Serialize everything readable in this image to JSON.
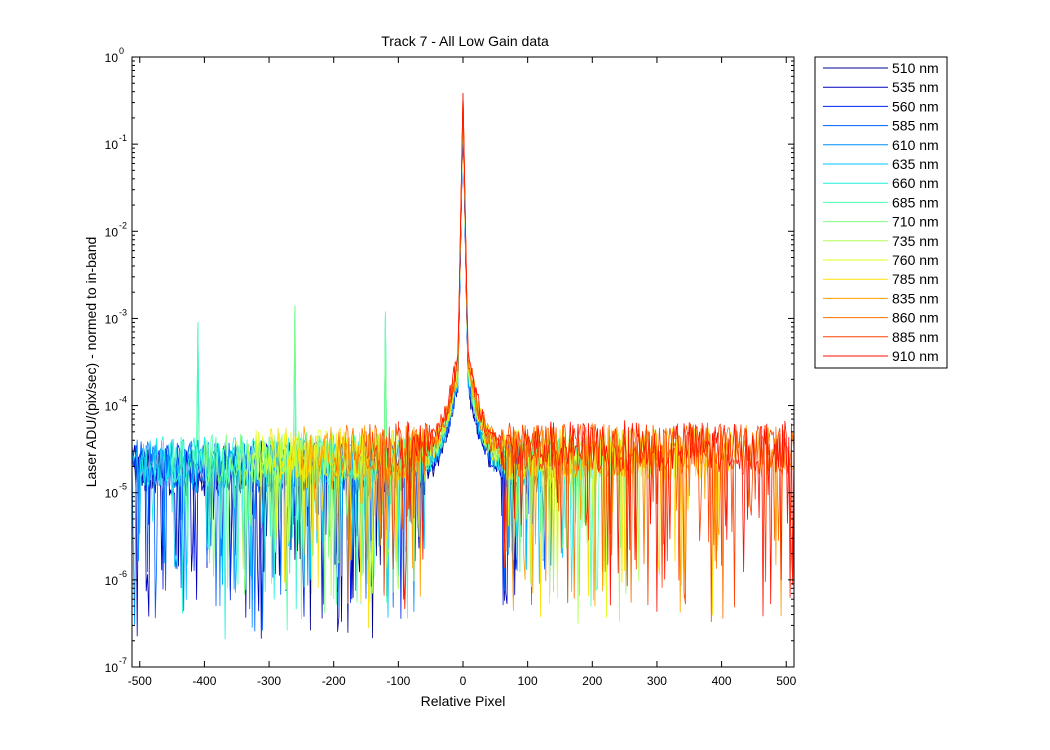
{
  "chart_data": {
    "type": "line",
    "title": "Track 7 - All Low Gain data",
    "xlabel": "Relative Pixel",
    "ylabel": "Laser ADU/(pix/sec) - normed to in-band",
    "yscale": "log",
    "xlim": [
      -512,
      512
    ],
    "ylim": [
      1e-07,
      1
    ],
    "xticks": [
      -500,
      -400,
      -300,
      -200,
      -100,
      0,
      100,
      200,
      300,
      400,
      500
    ],
    "xtick_labels": [
      "-500",
      "-400",
      "-300",
      "-200",
      "-100",
      "0",
      "100",
      "200",
      "300",
      "400",
      "500"
    ],
    "ytick_bases": [
      "10",
      "10",
      "10",
      "10",
      "10",
      "10",
      "10",
      "10"
    ],
    "ytick_exponents": [
      "0",
      "-1",
      "-2",
      "-3",
      "-4",
      "-5",
      "-6",
      "-7"
    ],
    "grid": false,
    "legend_position": "outside-right-top",
    "spikes": [
      {
        "x": -410,
        "y": 0.0009
      },
      {
        "x": -260,
        "y": 0.0014
      },
      {
        "x": -120,
        "y": 0.0012
      }
    ],
    "peak": {
      "x": 0,
      "y": 0.4
    },
    "series": [
      {
        "name": "510 nm",
        "color": "#00008f",
        "x_range": [
          -512,
          80
        ],
        "baseline": 1.8e-05
      },
      {
        "name": "535 nm",
        "color": "#0000bf",
        "x_range": [
          -512,
          100
        ],
        "baseline": 1.9e-05
      },
      {
        "name": "560 nm",
        "color": "#0020ef",
        "x_range": [
          -512,
          120
        ],
        "baseline": 2e-05
      },
      {
        "name": "585 nm",
        "color": "#0060ff",
        "x_range": [
          -512,
          140
        ],
        "baseline": 2e-05
      },
      {
        "name": "610 nm",
        "color": "#0090ff",
        "x_range": [
          -512,
          160
        ],
        "baseline": 2.1e-05
      },
      {
        "name": "635 nm",
        "color": "#00c0ff",
        "x_range": [
          -512,
          180
        ],
        "baseline": 2.2e-05
      },
      {
        "name": "660 nm",
        "color": "#20f0df",
        "x_range": [
          -500,
          200
        ],
        "baseline": 2.3e-05
      },
      {
        "name": "685 nm",
        "color": "#50ffaf",
        "x_range": [
          -450,
          230
        ],
        "baseline": 2.4e-05
      },
      {
        "name": "710 nm",
        "color": "#80ff80",
        "x_range": [
          -400,
          260
        ],
        "baseline": 2.5e-05
      },
      {
        "name": "735 nm",
        "color": "#afff50",
        "x_range": [
          -350,
          300
        ],
        "baseline": 2.6e-05
      },
      {
        "name": "760 nm",
        "color": "#dfff20",
        "x_range": [
          -320,
          350
        ],
        "baseline": 2.7e-05
      },
      {
        "name": "785 nm",
        "color": "#ffe000",
        "x_range": [
          -300,
          420
        ],
        "baseline": 2.8e-05
      },
      {
        "name": "835 nm",
        "color": "#ffa000",
        "x_range": [
          -250,
          512
        ],
        "baseline": 3e-05
      },
      {
        "name": "860 nm",
        "color": "#ff7000",
        "x_range": [
          -200,
          512
        ],
        "baseline": 3.1e-05
      },
      {
        "name": "885 nm",
        "color": "#ff4000",
        "x_range": [
          -150,
          512
        ],
        "baseline": 3.3e-05
      },
      {
        "name": "910 nm",
        "color": "#ff1000",
        "x_range": [
          -100,
          512
        ],
        "baseline": 3.4e-05
      }
    ]
  }
}
